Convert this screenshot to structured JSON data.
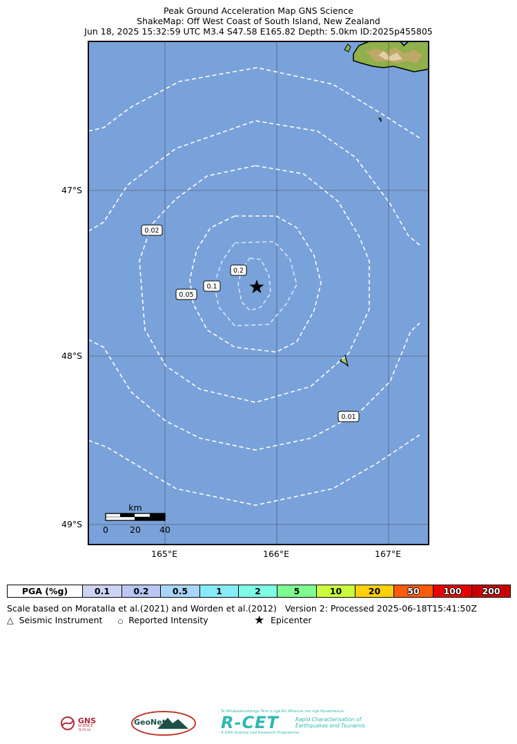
{
  "title": {
    "line1": "Peak Ground Acceleration Map GNS Science",
    "line2": "ShakeMap: Off West Coast of South Island, New Zealand",
    "line3": "Jun 18, 2025 15:32:59 UTC M3.4 S47.58 E165.82 Depth: 5.0km ID:2025p455805"
  },
  "map": {
    "lat_labels": [
      "47°S",
      "48°S",
      "49°S"
    ],
    "lon_labels": [
      "165°E",
      "166°E",
      "167°E"
    ],
    "contour_labels": [
      "0.02",
      "0.2",
      "0.1",
      "0.05",
      "0.01"
    ],
    "scale_bar": {
      "unit": "km",
      "ticks": [
        "0",
        "20",
        "40"
      ]
    },
    "colors": {
      "ocean": "#7aa2da",
      "contour": "#ffffff"
    }
  },
  "legend": {
    "header": "PGA (%g)",
    "bins": [
      {
        "label": "0.1",
        "color": "#cdd3f2"
      },
      {
        "label": "0.2",
        "color": "#bcc6f5"
      },
      {
        "label": "0.5",
        "color": "#a9d4fb"
      },
      {
        "label": "1",
        "color": "#86ecf9"
      },
      {
        "label": "2",
        "color": "#7ffbe6"
      },
      {
        "label": "5",
        "color": "#7ffb90"
      },
      {
        "label": "10",
        "color": "#cafc3b"
      },
      {
        "label": "20",
        "color": "#fdd10a"
      },
      {
        "label": "50",
        "color": "#fd5a0a"
      },
      {
        "label": "100",
        "color": "#e60000"
      },
      {
        "label": "200",
        "color": "#c80000"
      }
    ]
  },
  "notes": {
    "scale": "Scale based on Moratalla et al.(2021) and Worden et al.(2012)",
    "version": "Version 2: Processed 2025-06-18T15:41:50Z",
    "seismic": "Seismic Instrument",
    "reported": "Reported Intensity",
    "epicenter": "Epicenter"
  },
  "logos": {
    "gns": "GNS",
    "gns_sub": "SCIENCE",
    "gns_maori": "TE PŪ AO",
    "geonet": "GeoNet",
    "rcet": "R-CET",
    "rcet_top": "Te Whakaahuatanga Tere o ngā Rū Whenua me ngā Parawhenua",
    "rcet_desc1": "Rapid Characterisation of",
    "rcet_desc2": "Earthquakes and Tsunamis",
    "rcet_bottom": "A GNS Science Led Research Programme"
  }
}
